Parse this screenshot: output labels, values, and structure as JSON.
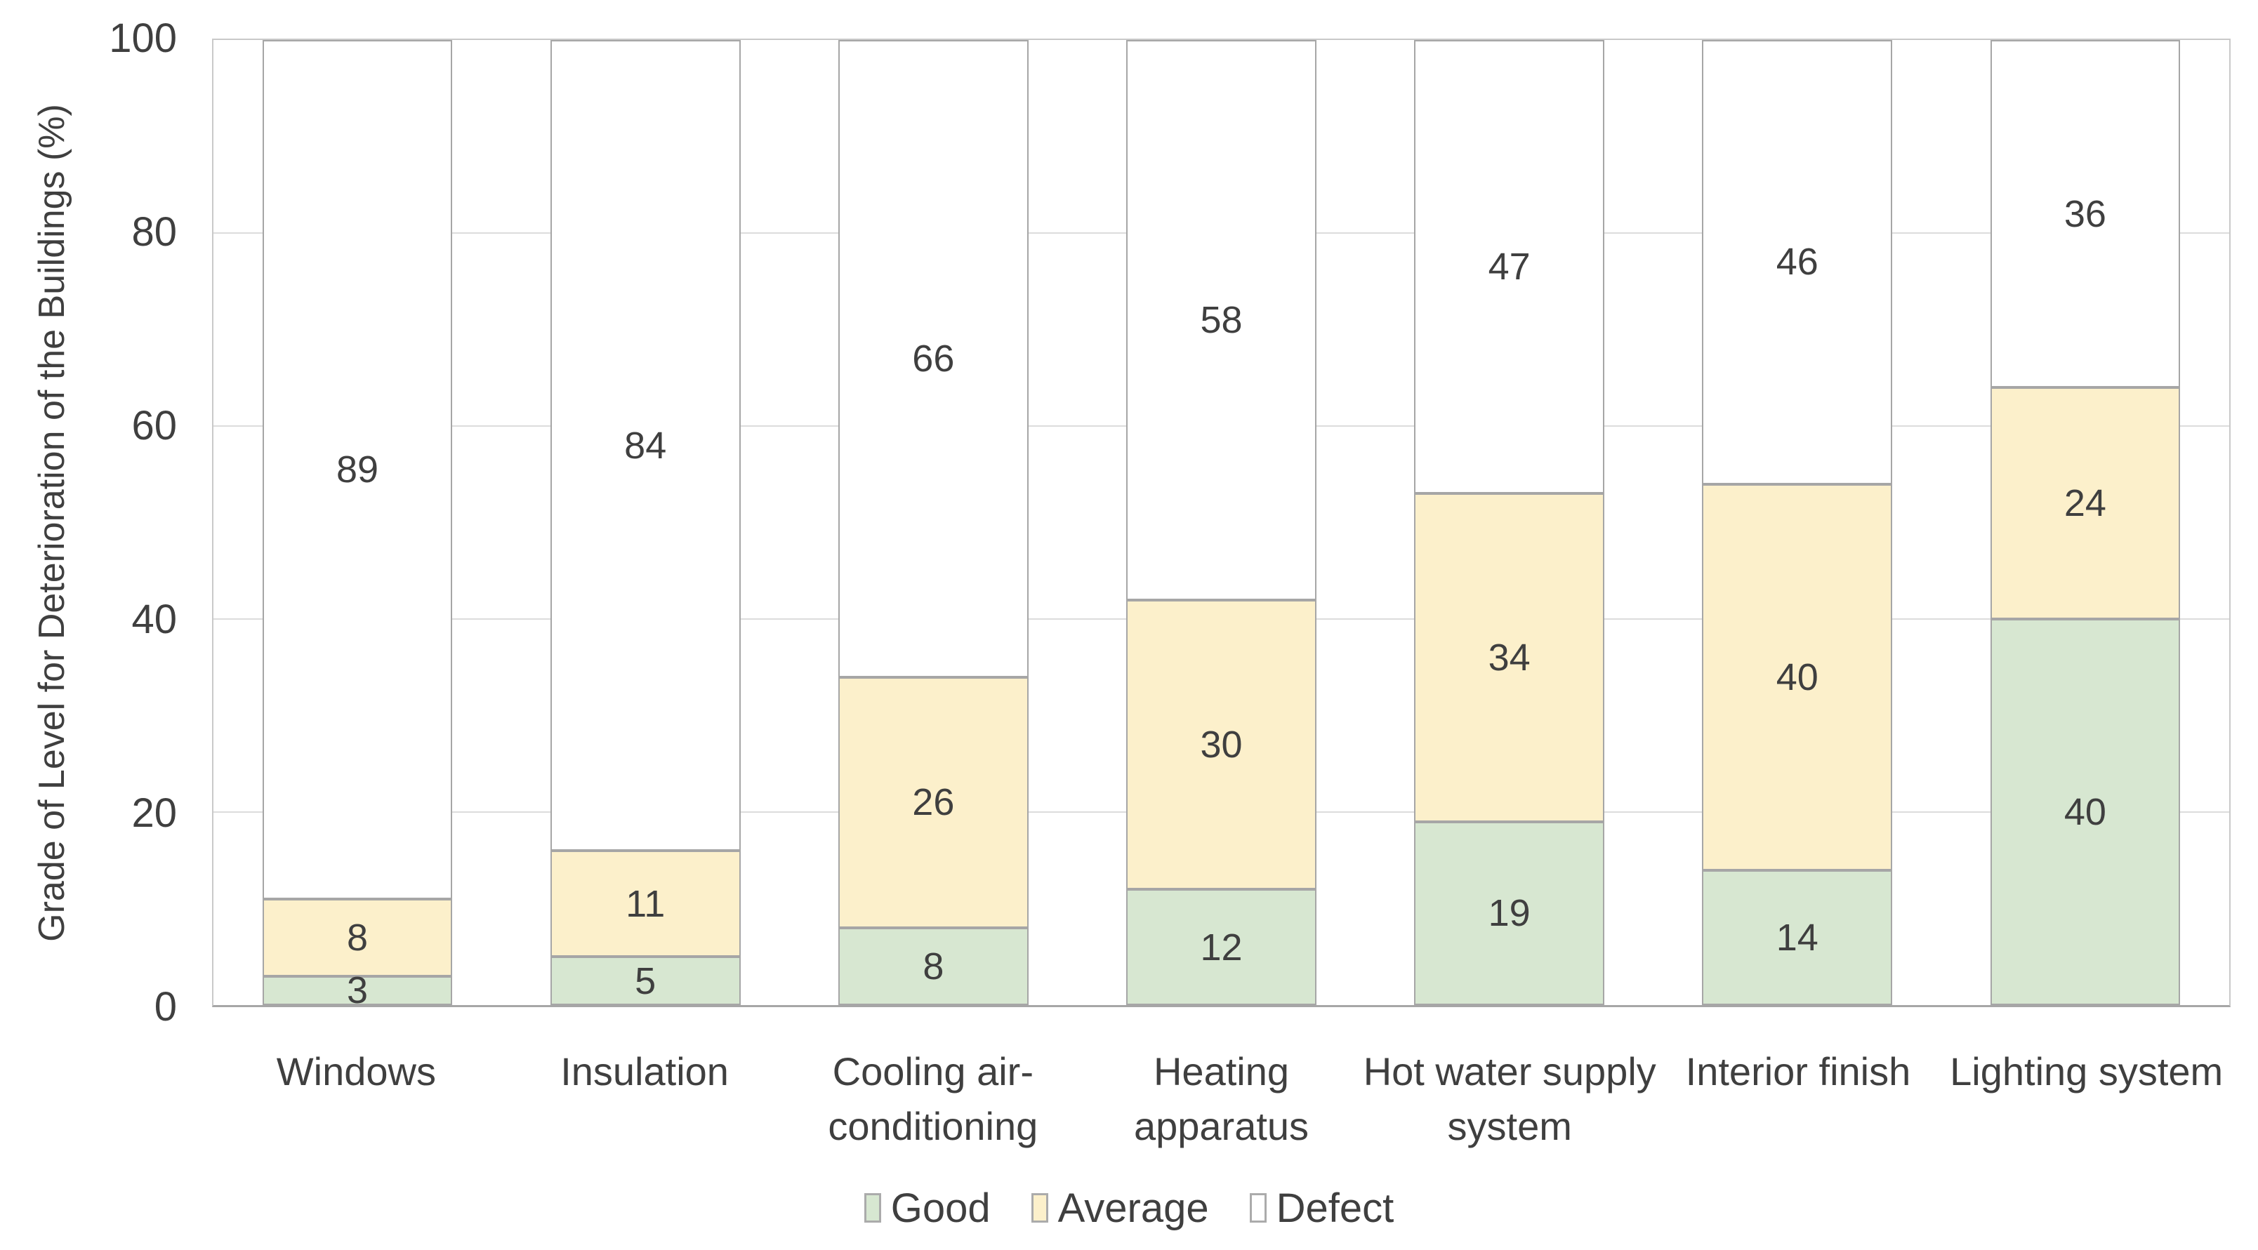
{
  "chart_data": {
    "type": "bar",
    "stacked": true,
    "title": "",
    "xlabel": "",
    "ylabel": "Grade of Level for Deterioration of the Buildings (%)",
    "ylim": [
      0,
      100
    ],
    "yticks": [
      0,
      20,
      40,
      60,
      80,
      100
    ],
    "grid": "horizontal",
    "legend_position": "bottom",
    "categories": [
      "Windows",
      "Insulation",
      "Cooling air-\nconditioning",
      "Heating\napparatus",
      "Hot water supply\nsystem",
      "Interior finish",
      "Lighting system"
    ],
    "series": [
      {
        "name": "Good",
        "color": "#d7e7d1",
        "values": [
          3,
          5,
          8,
          12,
          19,
          14,
          40
        ]
      },
      {
        "name": "Average",
        "color": "#fcf0cb",
        "values": [
          8,
          11,
          26,
          30,
          34,
          40,
          24
        ]
      },
      {
        "name": "Defect",
        "color": "#ffffff",
        "values": [
          89,
          84,
          66,
          58,
          47,
          46,
          36
        ]
      }
    ]
  },
  "styles": {
    "text_color": "#3f3f3f",
    "segment_border_color": "#a6a6a6",
    "gridline_color": "#dcdcdc",
    "plot_border_color": "#c9c9c9",
    "axis_line_color": "#a6a6a6",
    "background": "#ffffff"
  }
}
